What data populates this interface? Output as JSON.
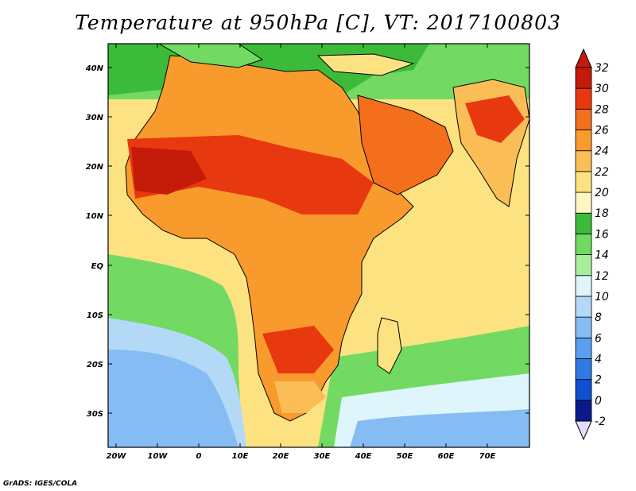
{
  "title": "Temperature at 950hPa [C], VT: 2017100803",
  "credit": "GrADS: IGES/COLA",
  "map": {
    "lat_labels": [
      "40N",
      "30N",
      "20N",
      "10N",
      "EQ",
      "10S",
      "20S",
      "30S"
    ],
    "lon_labels": [
      "20W",
      "10W",
      "0",
      "10E",
      "20E",
      "30E",
      "40E",
      "50E",
      "60E",
      "70E"
    ],
    "lon_range": [
      -22,
      80
    ],
    "lat_range": [
      -37,
      45
    ],
    "ocean_color": "#ffe98a",
    "land_color": "#f9a73e"
  },
  "colorbar": {
    "labels": [
      "-2",
      "0",
      "2",
      "4",
      "6",
      "8",
      "10",
      "12",
      "14",
      "16",
      "18",
      "20",
      "22",
      "24",
      "26",
      "28",
      "30",
      "32"
    ],
    "colors": [
      "#0a1a8c",
      "#0f4fd1",
      "#2f7ae3",
      "#5b9ef0",
      "#86bcf4",
      "#b3d9f7",
      "#def6fb",
      "#a8ee9c",
      "#72da62",
      "#3cbb3a",
      "#fff7c0",
      "#fde282",
      "#fbbe56",
      "#f99a2d",
      "#f46f1c",
      "#e8380f",
      "#c41a0a",
      "#e1ddfb"
    ]
  }
}
